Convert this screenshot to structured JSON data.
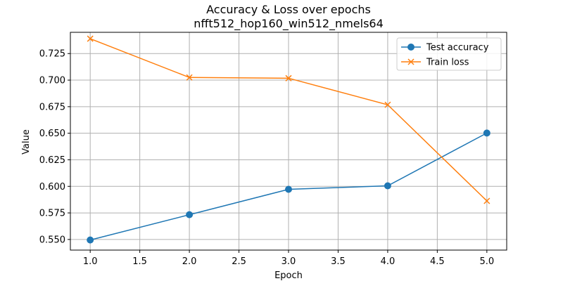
{
  "chart_data": {
    "type": "line",
    "title": "Accuracy & Loss over epochs",
    "subtitle": "nfft512_hop160_win512_nmels64",
    "xlabel": "Epoch",
    "ylabel": "Value",
    "x": [
      1,
      2,
      3,
      4,
      5
    ],
    "xlim": [
      0.8,
      5.2
    ],
    "ylim": [
      0.54,
      0.745
    ],
    "xticks": [
      "1.0",
      "1.5",
      "2.0",
      "2.5",
      "3.0",
      "3.5",
      "4.0",
      "4.5",
      "5.0"
    ],
    "yticks": [
      "0.550",
      "0.575",
      "0.600",
      "0.625",
      "0.650",
      "0.675",
      "0.700",
      "0.725"
    ],
    "grid": true,
    "legend_position": "top-right",
    "series": [
      {
        "name": "Test accuracy",
        "values": [
          0.5495,
          0.5733,
          0.5972,
          0.6005,
          0.6502
        ],
        "color": "#1f77b4",
        "marker": "circle"
      },
      {
        "name": "Train loss",
        "values": [
          0.739,
          0.7025,
          0.7018,
          0.6768,
          0.5863
        ],
        "color": "#ff7f0e",
        "marker": "x"
      }
    ]
  }
}
